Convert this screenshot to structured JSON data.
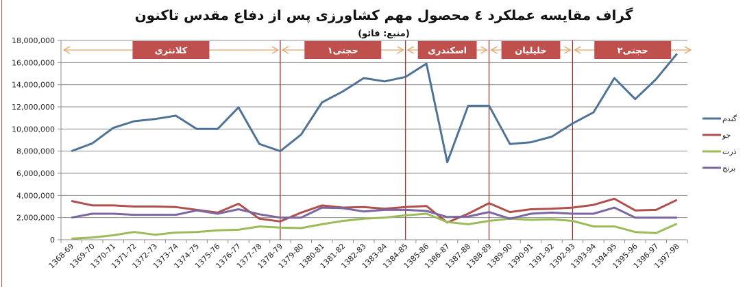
{
  "chart_data": {
    "type": "line",
    "title": "گراف مقایسه عملکرد ٤ محصول مهم کشاورزی پس از دفاع مقدس تاکنون",
    "subtitle": "(منبع: فائو)",
    "xlabel": "",
    "ylabel": "",
    "ylim": [
      0,
      18000000
    ],
    "yticks": [
      0,
      2000000,
      4000000,
      6000000,
      8000000,
      10000000,
      12000000,
      14000000,
      16000000,
      18000000
    ],
    "ytick_labels": [
      "0",
      "2,000,000",
      "4,000,000",
      "6,000,000",
      "8,000,000",
      "10,000,000",
      "12,000,000",
      "14,000,000",
      "16,000,000",
      "18,000,000"
    ],
    "grid": true,
    "legend_position": "right",
    "categories": [
      "1368-69",
      "1369-70",
      "1370-71",
      "1371-72",
      "1372-73",
      "1373-74",
      "1374-75",
      "1375-76",
      "1376-77",
      "1377-78",
      "1378-79",
      "1379-80",
      "1380-81",
      "1381-82",
      "1382-83",
      "1383-84",
      "1384-85",
      "1385-86",
      "1386-87",
      "1387-88",
      "1388-89",
      "1389-90",
      "1390-91",
      "1391-92",
      "1392-93",
      "1393-94",
      "1394-95",
      "1395-96",
      "1396-97",
      "1397-98"
    ],
    "series": [
      {
        "name": "گندم",
        "color": "#4f7396",
        "values": [
          8000000,
          8700000,
          10100000,
          10700000,
          10900000,
          11200000,
          10000000,
          10000000,
          11950000,
          8650000,
          8000000,
          9500000,
          12400000,
          13400000,
          14600000,
          14300000,
          14700000,
          15900000,
          7000000,
          12100000,
          12100000,
          8650000,
          8800000,
          9300000,
          10500000,
          11500000,
          14600000,
          12700000,
          14500000,
          16800000
        ]
      },
      {
        "name": "جو",
        "color": "#b0504d",
        "values": [
          3500000,
          3100000,
          3100000,
          3000000,
          3000000,
          2950000,
          2700000,
          2450000,
          3250000,
          1900000,
          1650000,
          2450000,
          3100000,
          2900000,
          2950000,
          2800000,
          2950000,
          3050000,
          1550000,
          2350000,
          3300000,
          2500000,
          2750000,
          2800000,
          2900000,
          3150000,
          3700000,
          2650000,
          2700000,
          3600000
        ]
      },
      {
        "name": "ذرت",
        "color": "#9bbb59",
        "values": [
          100000,
          200000,
          400000,
          700000,
          450000,
          650000,
          700000,
          850000,
          900000,
          1200000,
          1100000,
          1050000,
          1400000,
          1700000,
          1900000,
          2000000,
          2200000,
          2350000,
          1600000,
          1400000,
          1700000,
          1900000,
          1800000,
          1850000,
          1700000,
          1200000,
          1200000,
          700000,
          600000,
          1450000
        ]
      },
      {
        "name": "برنج",
        "color": "#7b66a1",
        "values": [
          2000000,
          2350000,
          2350000,
          2250000,
          2250000,
          2250000,
          2650000,
          2350000,
          2750000,
          2300000,
          2000000,
          2000000,
          2900000,
          2850000,
          2550000,
          2700000,
          2700000,
          2600000,
          2050000,
          2100000,
          2500000,
          1900000,
          2350000,
          2450000,
          2350000,
          2350000,
          2900000,
          2000000,
          2000000,
          2000000
        ]
      }
    ],
    "annotations": {
      "periods": [
        {
          "label": "کلانتری",
          "start_index": 0,
          "end_index": 10
        },
        {
          "label": "حجتی١",
          "start_index": 10,
          "end_index": 16
        },
        {
          "label": "اسکندری",
          "start_index": 16,
          "end_index": 20
        },
        {
          "label": "خلیلیان",
          "start_index": 20,
          "end_index": 24
        },
        {
          "label": "حجتی٢",
          "start_index": 24,
          "end_index": 29
        }
      ],
      "divider_indices": [
        10,
        16,
        20,
        24
      ],
      "label_color": "#c0504d",
      "arrow_color": "#e3a76b",
      "divider_color": "#a02020"
    }
  }
}
